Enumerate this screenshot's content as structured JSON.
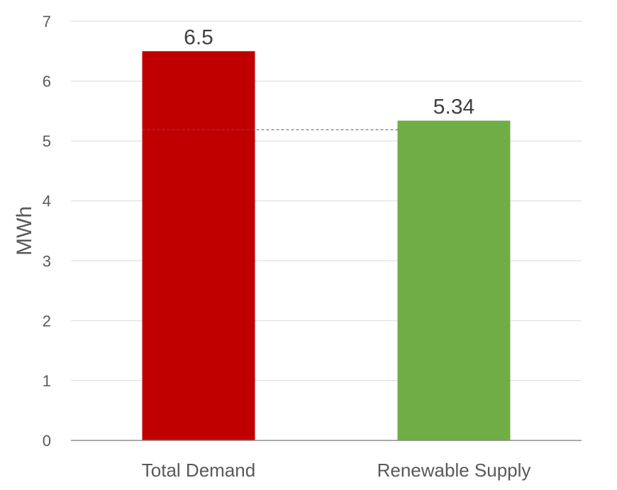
{
  "chart_data": {
    "type": "bar",
    "title": "",
    "xlabel": "",
    "ylabel": "MWh",
    "ylim": [
      0,
      7
    ],
    "yticks": [
      0,
      1,
      2,
      3,
      4,
      5,
      6,
      7
    ],
    "grid": true,
    "categories": [
      "Total Demand",
      "Renewable Supply"
    ],
    "values": [
      6.5,
      5.34
    ],
    "data_labels": [
      "6.5",
      "5.34"
    ],
    "colors": [
      "#C00000",
      "#70AD47"
    ],
    "reference_line": {
      "value": 5.19,
      "style": "dashed",
      "color": "#595959"
    }
  }
}
